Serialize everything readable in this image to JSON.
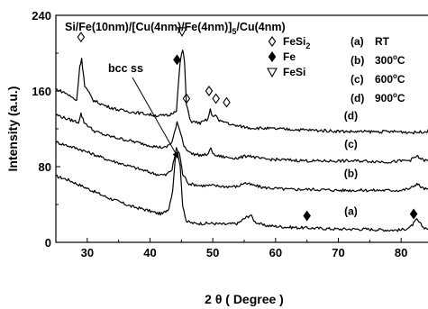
{
  "chart_data": {
    "type": "line",
    "title": "Si/Fe(10nm)/[Cu(4nm)/Fe(4nm)]5/Cu(4nm)",
    "title_parts": {
      "main": "Si/Fe(10nm)/[Cu(4nm)/Fe(4nm)]",
      "sub": "5",
      "tail": "/Cu(4nm)"
    },
    "xlabel": "2 θ ( Degree )",
    "ylabel": "Intensity (a.u.)",
    "xlim": [
      25,
      85
    ],
    "ylim": [
      0,
      240
    ],
    "xticks": [
      30,
      40,
      50,
      60,
      70,
      80
    ],
    "yticks": [
      0,
      80,
      160,
      240
    ],
    "legend_markers": [
      {
        "symbol": "diamond-open",
        "text": "FeSi",
        "sub": "2"
      },
      {
        "symbol": "diamond-filled",
        "text": "Fe",
        "sub": ""
      },
      {
        "symbol": "triangle-down-open",
        "text": "FeSi",
        "sub": ""
      }
    ],
    "legend_samples": [
      {
        "tag": "(a)",
        "text": "RT",
        "sup": ""
      },
      {
        "tag": "(b)",
        "text": "300",
        "sup": "o",
        "unit": "C"
      },
      {
        "tag": "(c)",
        "text": "600",
        "sup": "o",
        "unit": "C"
      },
      {
        "tag": "(d)",
        "text": "900",
        "sup": "o",
        "unit": "C"
      }
    ],
    "annotation": {
      "text": "bcc ss",
      "arrow_to": [
        44.6,
        88
      ]
    },
    "series": [
      {
        "name": "(a)",
        "label_at": [
          72,
          33
        ],
        "points": [
          [
            25,
            70
          ],
          [
            27,
            66
          ],
          [
            29,
            60
          ],
          [
            31,
            54
          ],
          [
            33,
            48
          ],
          [
            35,
            43
          ],
          [
            37,
            38
          ],
          [
            39,
            35
          ],
          [
            41,
            31
          ],
          [
            42,
            30
          ],
          [
            43,
            36
          ],
          [
            43.6,
            55
          ],
          [
            44,
            88
          ],
          [
            44.4,
            96
          ],
          [
            44.8,
            80
          ],
          [
            45.2,
            40
          ],
          [
            45.8,
            22
          ],
          [
            47,
            20
          ],
          [
            50,
            20
          ],
          [
            52,
            19
          ],
          [
            54,
            20
          ],
          [
            55,
            25
          ],
          [
            56,
            29
          ],
          [
            56.7,
            22
          ],
          [
            58,
            18
          ],
          [
            62,
            16
          ],
          [
            66,
            15
          ],
          [
            70,
            14
          ],
          [
            74,
            14
          ],
          [
            78,
            13
          ],
          [
            80,
            13
          ],
          [
            81.5,
            16
          ],
          [
            82.5,
            24
          ],
          [
            83.5,
            16
          ],
          [
            85,
            13
          ]
        ]
      },
      {
        "name": "(b)",
        "label_at": [
          72,
          73
        ],
        "points": [
          [
            25,
            106
          ],
          [
            27,
            102
          ],
          [
            29,
            98
          ],
          [
            31,
            93
          ],
          [
            33,
            88
          ],
          [
            35,
            84
          ],
          [
            37,
            80
          ],
          [
            39,
            76
          ],
          [
            41,
            72
          ],
          [
            42.5,
            71
          ],
          [
            43.5,
            77
          ],
          [
            44.2,
            99
          ],
          [
            44.7,
            94
          ],
          [
            45.2,
            72
          ],
          [
            46.2,
            62
          ],
          [
            48,
            60
          ],
          [
            50,
            60
          ],
          [
            52,
            59
          ],
          [
            54,
            59
          ],
          [
            55,
            63
          ],
          [
            56,
            61
          ],
          [
            58,
            58
          ],
          [
            62,
            56
          ],
          [
            66,
            56
          ],
          [
            70,
            55
          ],
          [
            74,
            55
          ],
          [
            78,
            55
          ],
          [
            80,
            55
          ],
          [
            81.5,
            57
          ],
          [
            82.5,
            62
          ],
          [
            83.5,
            57
          ],
          [
            85,
            55
          ]
        ]
      },
      {
        "name": "(c)",
        "label_at": [
          72,
          104
        ],
        "points": [
          [
            25,
            135
          ],
          [
            27,
            130
          ],
          [
            28.6,
            127
          ],
          [
            29,
            136
          ],
          [
            29.5,
            127
          ],
          [
            31,
            118
          ],
          [
            33,
            113
          ],
          [
            35,
            110
          ],
          [
            37,
            107
          ],
          [
            39,
            104
          ],
          [
            41,
            101
          ],
          [
            42.5,
            100
          ],
          [
            43.5,
            106
          ],
          [
            44.3,
            126
          ],
          [
            44.9,
            116
          ],
          [
            45.4,
            102
          ],
          [
            46.5,
            94
          ],
          [
            48,
            92
          ],
          [
            49.3,
            93
          ],
          [
            49.7,
            100
          ],
          [
            50.2,
            92
          ],
          [
            52,
            90
          ],
          [
            54,
            89
          ],
          [
            55.8,
            92
          ],
          [
            56.5,
            90
          ],
          [
            58,
            88
          ],
          [
            62,
            87
          ],
          [
            66,
            86
          ],
          [
            70,
            86
          ],
          [
            74,
            86
          ],
          [
            78,
            85
          ],
          [
            80,
            86
          ],
          [
            81.5,
            87
          ],
          [
            82.5,
            91
          ],
          [
            83.5,
            87
          ],
          [
            85,
            85
          ]
        ]
      },
      {
        "name": "(d)",
        "label_at": [
          72,
          134
        ],
        "points": [
          [
            25,
            162
          ],
          [
            26.5,
            158
          ],
          [
            28.3,
            150
          ],
          [
            28.8,
            185
          ],
          [
            29.1,
            195
          ],
          [
            29.6,
            165
          ],
          [
            31,
            150
          ],
          [
            33,
            144
          ],
          [
            35,
            140
          ],
          [
            37,
            138
          ],
          [
            39,
            136
          ],
          [
            41,
            134
          ],
          [
            43,
            134
          ],
          [
            44.2,
            140
          ],
          [
            44.8,
            190
          ],
          [
            45.2,
            204
          ],
          [
            45.5,
            190
          ],
          [
            45.8,
            145
          ],
          [
            46.5,
            128
          ],
          [
            48,
            126
          ],
          [
            49.2,
            130
          ],
          [
            49.6,
            140
          ],
          [
            50,
            132
          ],
          [
            50.4,
            136
          ],
          [
            51,
            128
          ],
          [
            52.2,
            127
          ],
          [
            53,
            124
          ],
          [
            56,
            121
          ],
          [
            60,
            120
          ],
          [
            64,
            119
          ],
          [
            68,
            118
          ],
          [
            72,
            117
          ],
          [
            76,
            117
          ],
          [
            80,
            117
          ],
          [
            82,
            116
          ],
          [
            85,
            118
          ]
        ]
      }
    ],
    "peak_markers": [
      {
        "symbol": "diamond-open",
        "x": 29.0,
        "y": 217
      },
      {
        "symbol": "triangle-down-open",
        "x": 45.1,
        "y": 223
      },
      {
        "symbol": "diamond-filled",
        "x": 44.3,
        "y": 193
      },
      {
        "symbol": "diamond-open",
        "x": 45.8,
        "y": 152
      },
      {
        "symbol": "diamond-open",
        "x": 49.4,
        "y": 160
      },
      {
        "symbol": "diamond-open",
        "x": 50.5,
        "y": 152
      },
      {
        "symbol": "diamond-open",
        "x": 52.2,
        "y": 148
      },
      {
        "symbol": "diamond-filled",
        "x": 65.0,
        "y": 28
      },
      {
        "symbol": "diamond-filled",
        "x": 82.0,
        "y": 30
      }
    ]
  }
}
